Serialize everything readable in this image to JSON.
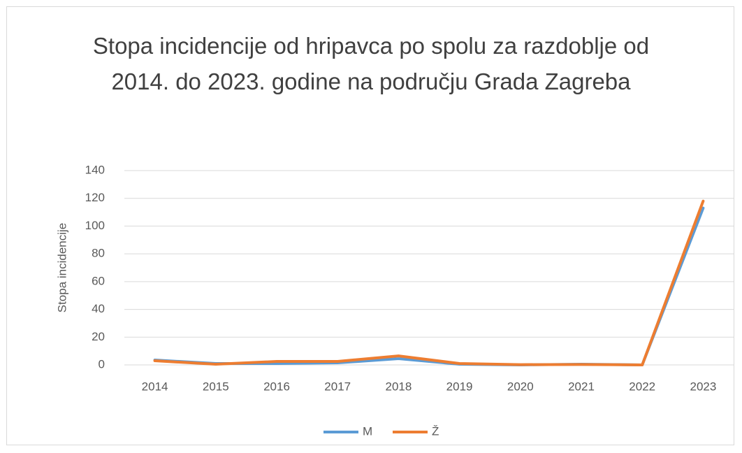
{
  "chart_data": {
    "type": "line",
    "title": "Stopa incidencije od hripavca po spolu za razdoblje od 2014. do 2023. godine na području Grada Zagreba",
    "y_label": "Stopa incidencije",
    "categories": [
      "2014",
      "2015",
      "2016",
      "2017",
      "2018",
      "2019",
      "2020",
      "2021",
      "2022",
      "2023"
    ],
    "series": [
      {
        "name": "M",
        "color": "#5b9bd5",
        "values": [
          3.5,
          1,
          1,
          1.5,
          4.5,
          0.5,
          0,
          0.5,
          0,
          113
        ]
      },
      {
        "name": "Ž",
        "color": "#ed7d31",
        "values": [
          3,
          0.5,
          2.5,
          2.5,
          6.5,
          1,
          0.2,
          0.3,
          0,
          118
        ]
      }
    ],
    "ylim": [
      0,
      140
    ],
    "yticks": [
      0,
      20,
      40,
      60,
      80,
      100,
      120,
      140
    ],
    "grid": true,
    "legend": "bottom"
  }
}
